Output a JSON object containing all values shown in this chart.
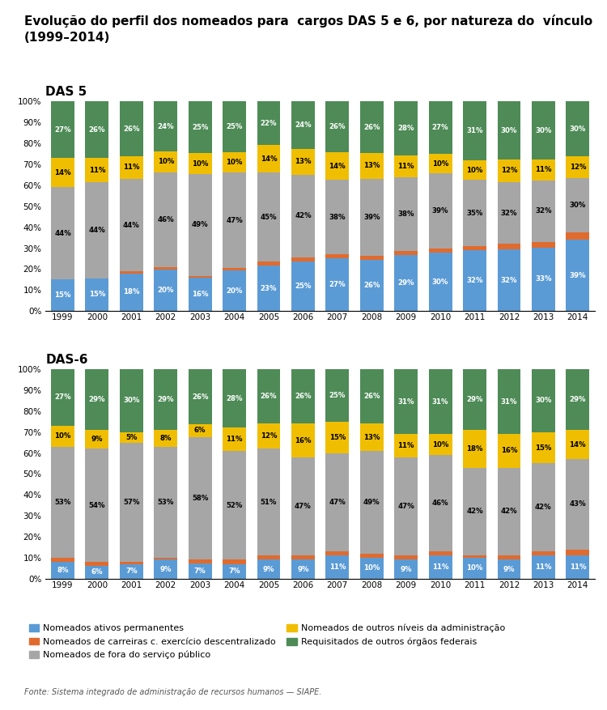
{
  "title_line1": "Evolução do perfil dos nomeados para  cargos DAS 5 e 6, por natureza do  vínculo",
  "title_line2": "(1999–2014)",
  "years": [
    1999,
    2000,
    2001,
    2002,
    2003,
    2004,
    2005,
    2006,
    2007,
    2008,
    2009,
    2010,
    2011,
    2012,
    2013,
    2014
  ],
  "das5": {
    "label": "DAS 5",
    "nomeados_ativos": [
      15,
      15,
      18,
      20,
      16,
      20,
      23,
      25,
      27,
      26,
      29,
      30,
      32,
      32,
      33,
      39
    ],
    "carreiras_desc": [
      0,
      0,
      1,
      1,
      1,
      1,
      2,
      2,
      2,
      2,
      2,
      2,
      2,
      3,
      3,
      4
    ],
    "fora_servico": [
      44,
      44,
      44,
      46,
      49,
      47,
      45,
      42,
      38,
      39,
      38,
      39,
      35,
      32,
      32,
      30
    ],
    "outros_niveis": [
      14,
      11,
      11,
      10,
      10,
      10,
      14,
      13,
      14,
      13,
      11,
      10,
      10,
      12,
      11,
      12
    ],
    "requisitados": [
      27,
      26,
      26,
      24,
      25,
      25,
      22,
      24,
      26,
      26,
      28,
      27,
      31,
      30,
      30,
      30
    ]
  },
  "das6": {
    "label": "DAS-6",
    "nomeados_ativos": [
      8,
      6,
      7,
      9,
      7,
      7,
      9,
      9,
      11,
      10,
      9,
      11,
      10,
      9,
      11,
      11
    ],
    "carreiras_desc": [
      2,
      2,
      1,
      1,
      2,
      2,
      2,
      2,
      2,
      2,
      2,
      2,
      1,
      2,
      2,
      3
    ],
    "fora_servico": [
      53,
      54,
      57,
      53,
      58,
      52,
      51,
      47,
      47,
      49,
      47,
      46,
      42,
      42,
      42,
      43
    ],
    "outros_niveis": [
      10,
      9,
      5,
      8,
      6,
      11,
      12,
      16,
      15,
      13,
      11,
      10,
      18,
      16,
      15,
      14
    ],
    "requisitados": [
      27,
      29,
      30,
      29,
      26,
      28,
      26,
      26,
      25,
      26,
      31,
      31,
      29,
      31,
      30,
      29
    ]
  },
  "colors": {
    "nomeados_ativos": "#5B9BD5",
    "carreiras_desc": "#E06B2E",
    "fora_servico": "#A6A6A6",
    "outros_niveis": "#F0BE00",
    "requisitados": "#4E8B57"
  },
  "legend_labels": {
    "nomeados_ativos": "Nomeados ativos permanentes",
    "carreiras_desc": "Nomeados de carreiras c. exercício descentralizado",
    "fora_servico": "Nomeados de fora do serviço público",
    "outros_niveis": "Nomeados de outros níveis da administração",
    "requisitados": "Requisitados de outros órgãos federais"
  },
  "source": "Fonte: Sistema integrado de administração de recursos humanos — SIAPE."
}
